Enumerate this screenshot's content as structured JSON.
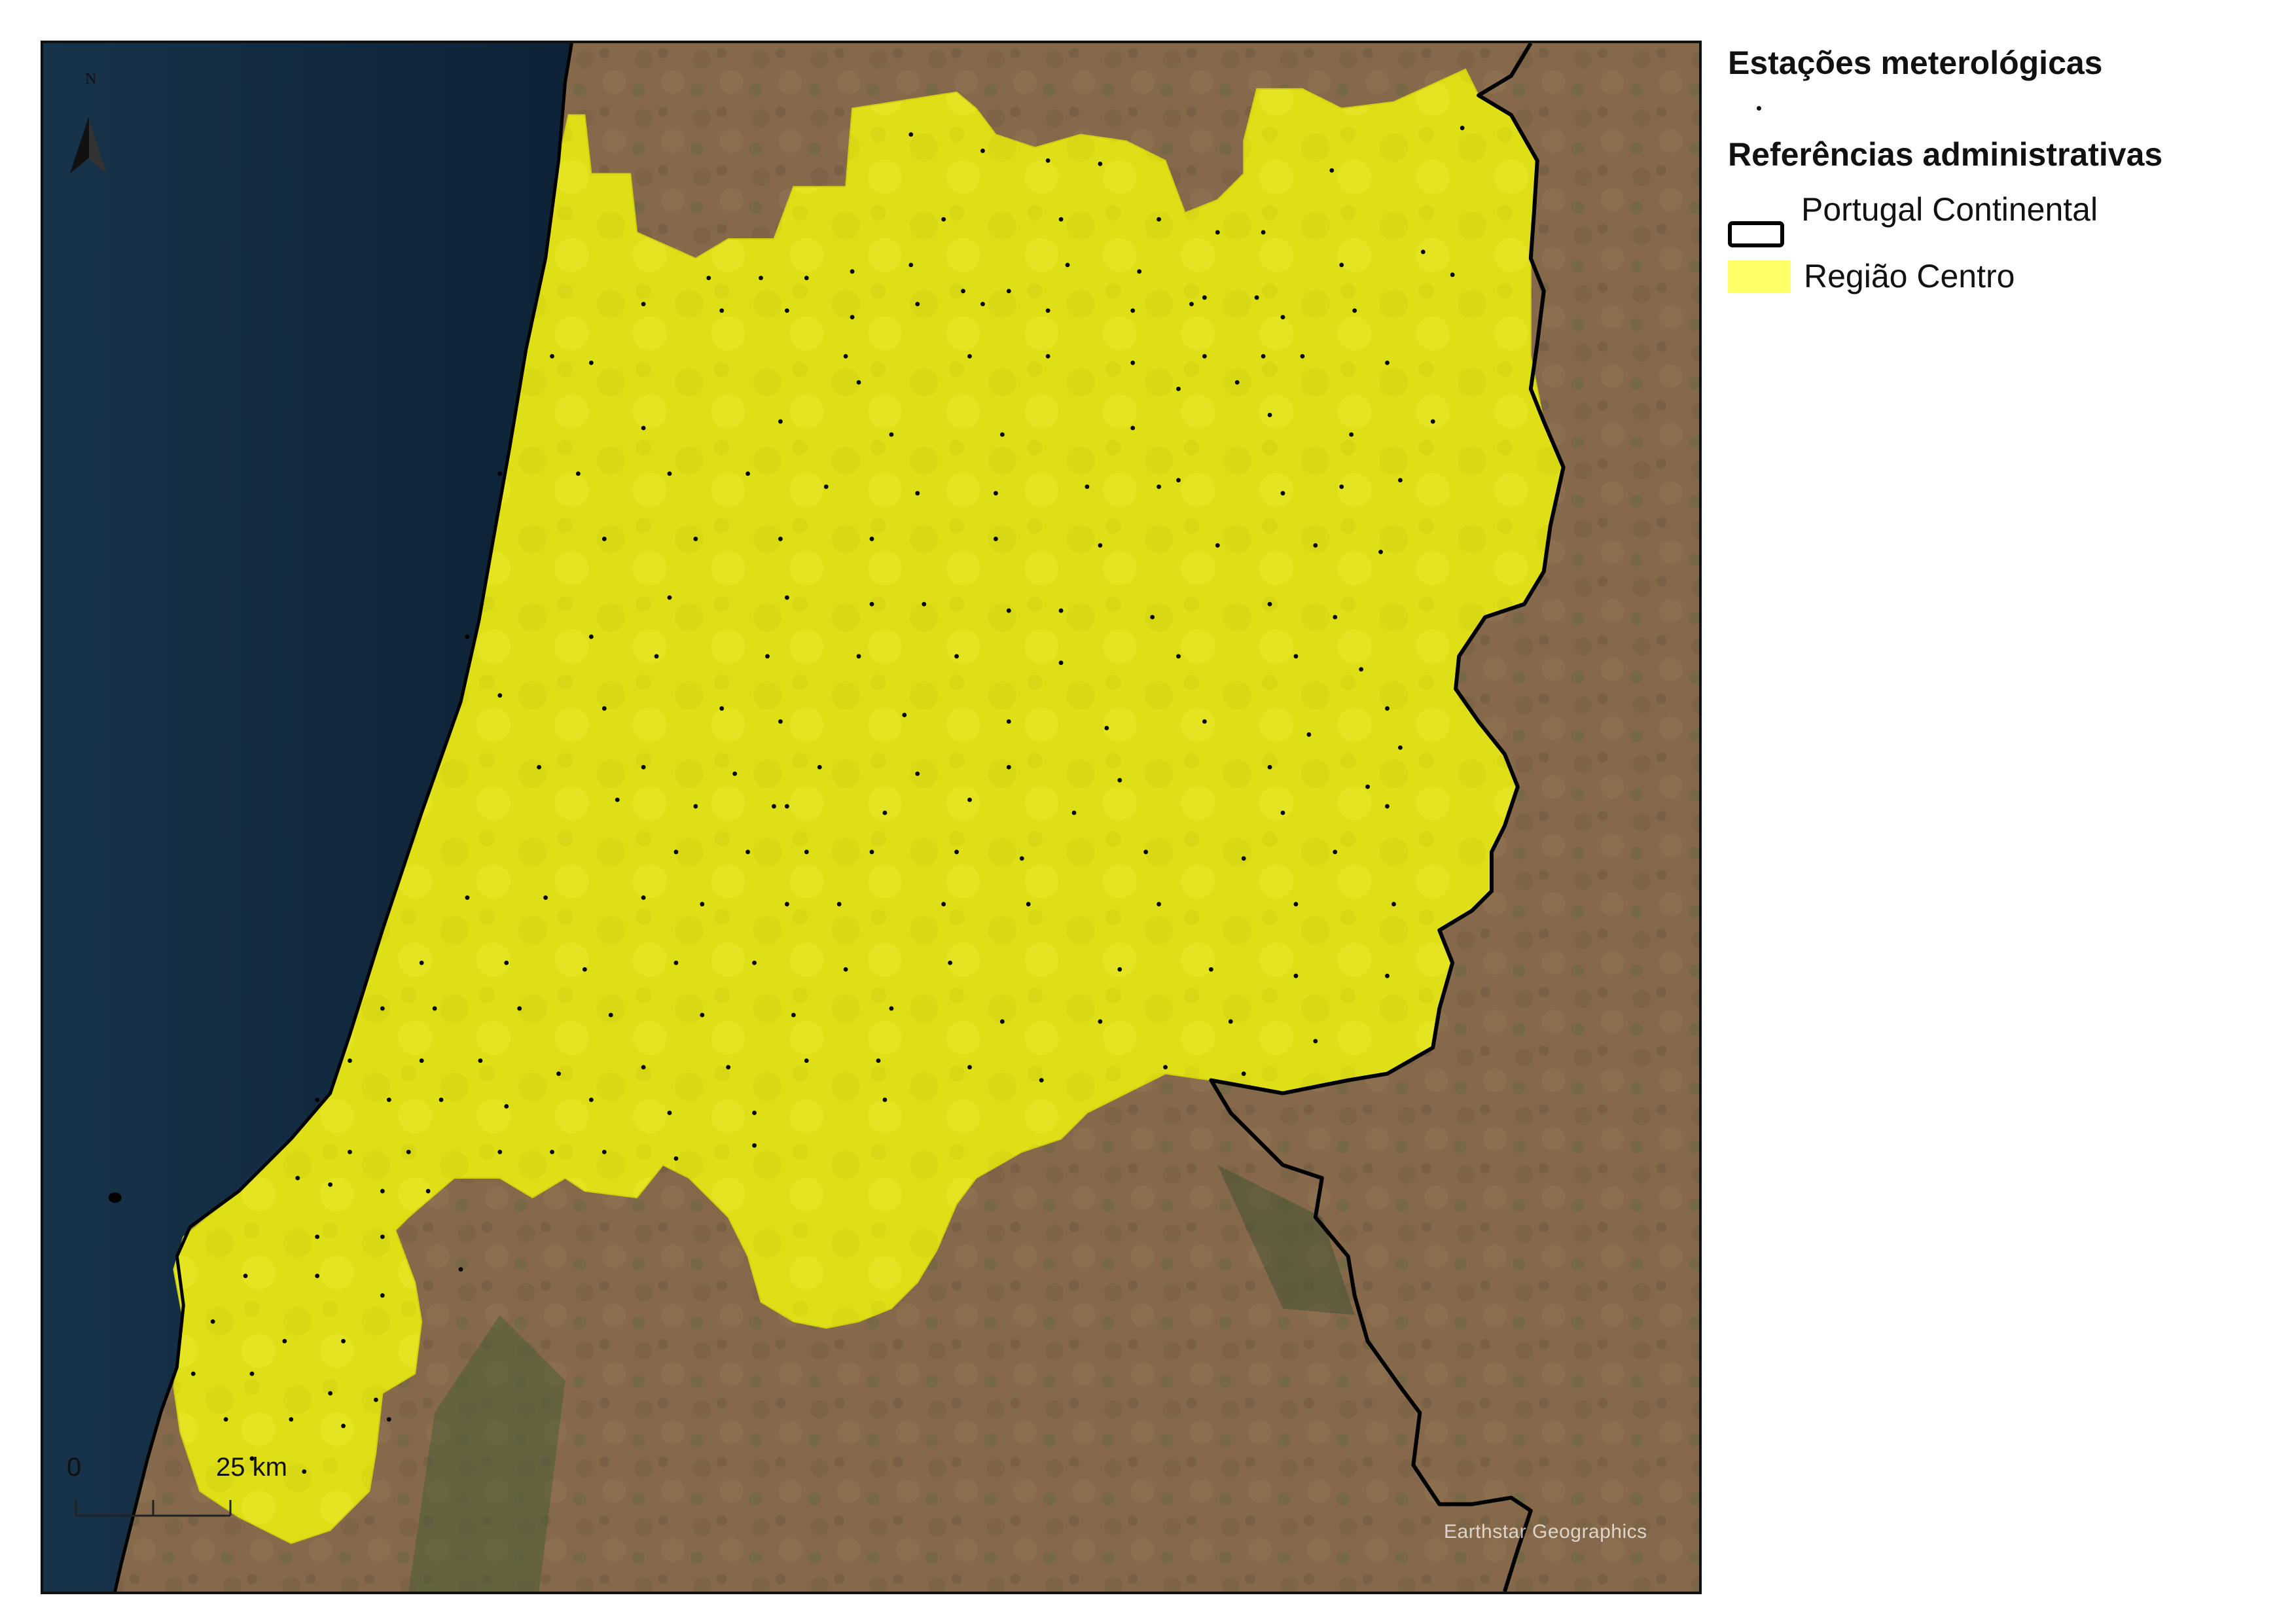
{
  "legend": {
    "stations_heading": "Estações meterológicas",
    "admin_heading": "Referências administrativas",
    "items": [
      {
        "label": "Portugal Continental",
        "symbol": "black-outline",
        "color": "#000000"
      },
      {
        "label": "Região Centro",
        "symbol": "yellow-fill",
        "color": "#ffff66"
      }
    ]
  },
  "map": {
    "attribution": "Earthstar Geographics",
    "north_label": "N",
    "scale_bar": {
      "zero_label": "0",
      "distance_label": "25 km"
    },
    "colors": {
      "sea": "#10283c",
      "land": "#866a49",
      "region_fill": "#e2e21a",
      "border": "#000000",
      "station": "#000000"
    },
    "station_symbol": "black-dot"
  }
}
